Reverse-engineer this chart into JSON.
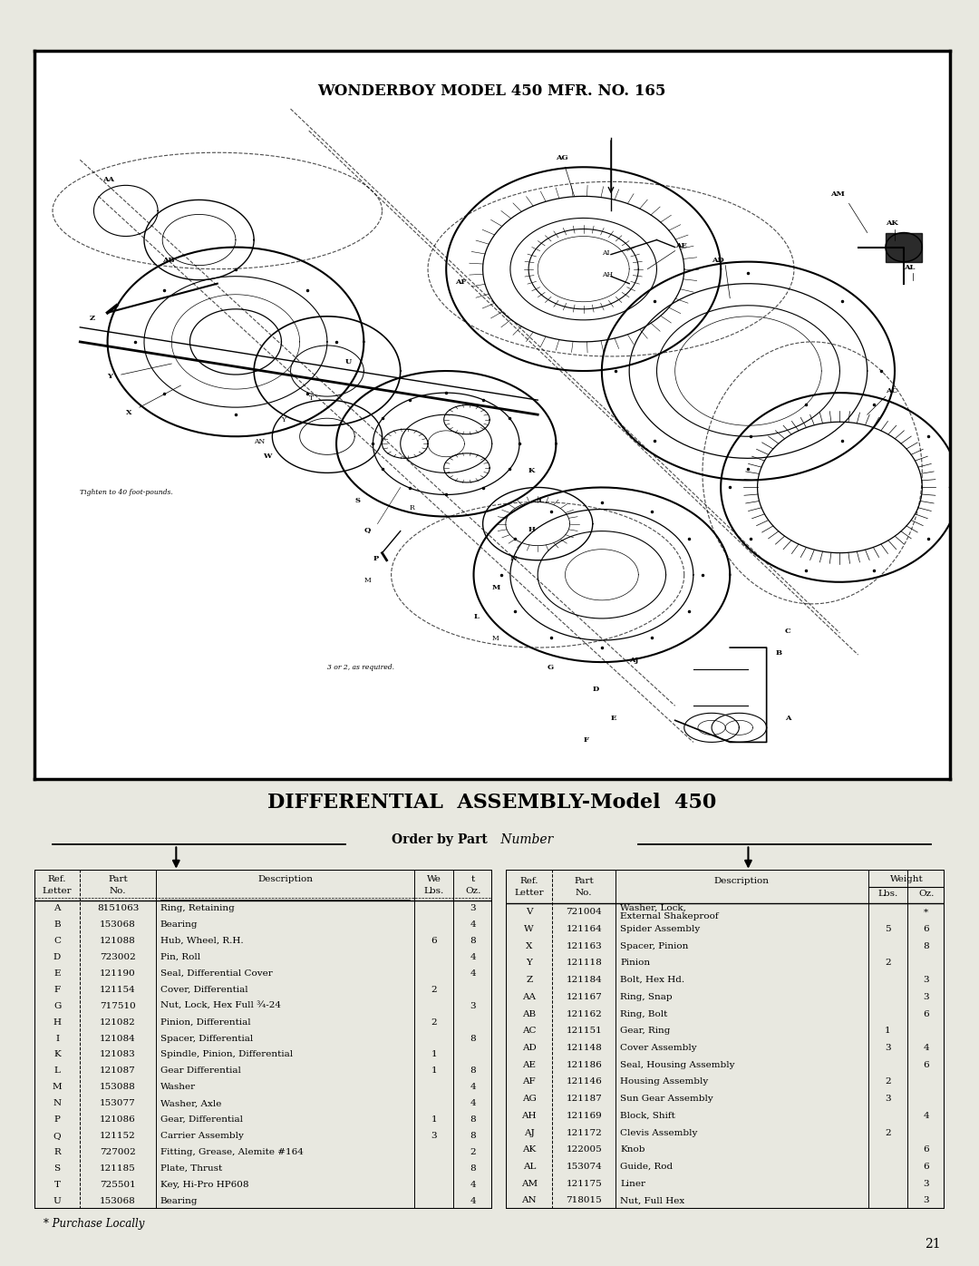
{
  "page_title": "WONDERBOY MODEL 450 MFR. NO. 165",
  "section_title": "DIFFERENTIAL  ASSEMBLY-Model  450",
  "order_by_text": "Order by Part",
  "order_by_italic": "Number",
  "page_number": "21",
  "footnote": "* Purchase Locally",
  "bg_color": "#e8e8e0",
  "diagram_bg": "#ffffff",
  "note1": "Tighten to 40 foot-pounds.",
  "note2": "3 or 2, as required.",
  "left_table_rows": [
    [
      "A",
      "8151063",
      "Ring, Retaining",
      "",
      "3"
    ],
    [
      "B",
      "153068",
      "Bearing",
      "",
      "4"
    ],
    [
      "C",
      "121088",
      "Hub, Wheel, R.H.",
      "6",
      "8"
    ],
    [
      "D",
      "723002",
      "Pin, Roll",
      "",
      "4"
    ],
    [
      "E",
      "121190",
      "Seal, Differential Cover",
      "",
      "4"
    ],
    [
      "F",
      "121154",
      "Cover, Differential",
      "2",
      ""
    ],
    [
      "G",
      "717510",
      "Nut, Lock, Hex Full ¾-24",
      "",
      "3"
    ],
    [
      "H",
      "121082",
      "Pinion, Differential",
      "2",
      ""
    ],
    [
      "I",
      "121084",
      "Spacer, Differential",
      "",
      "8"
    ],
    [
      "K",
      "121083",
      "Spindle, Pinion, Differential",
      "1",
      ""
    ],
    [
      "L",
      "121087",
      "Gear Differential",
      "1",
      "8"
    ],
    [
      "M",
      "153088",
      "Washer",
      "",
      "4"
    ],
    [
      "N",
      "153077",
      "Washer, Axle",
      "",
      "4"
    ],
    [
      "P",
      "121086",
      "Gear, Differential",
      "1",
      "8"
    ],
    [
      "Q",
      "121152",
      "Carrier Assembly",
      "3",
      "8"
    ],
    [
      "R",
      "727002",
      "Fitting, Grease, Alemite #164",
      "",
      "2"
    ],
    [
      "S",
      "121185",
      "Plate, Thrust",
      "",
      "8"
    ],
    [
      "T",
      "725501",
      "Key, Hi-Pro HP608",
      "",
      "4"
    ],
    [
      "U",
      "153068",
      "Bearing",
      "",
      "4"
    ]
  ],
  "right_table_rows": [
    [
      "V",
      "721004",
      "Washer, Lock,\nExternal Shakeproof",
      "",
      "*"
    ],
    [
      "W",
      "121164",
      "Spider Assembly",
      "5",
      "6"
    ],
    [
      "X",
      "121163",
      "Spacer, Pinion",
      "",
      "8"
    ],
    [
      "Y",
      "121118",
      "Pinion",
      "2",
      ""
    ],
    [
      "Z",
      "121184",
      "Bolt, Hex Hd.",
      "",
      "3"
    ],
    [
      "AA",
      "121167",
      "Ring, Snap",
      "",
      "3"
    ],
    [
      "AB",
      "121162",
      "Ring, Bolt",
      "",
      "6"
    ],
    [
      "AC",
      "121151",
      "Gear, Ring",
      "1",
      ""
    ],
    [
      "AD",
      "121148",
      "Cover Assembly",
      "3",
      "4"
    ],
    [
      "AE",
      "121186",
      "Seal, Housing Assembly",
      "",
      "6"
    ],
    [
      "AF",
      "121146",
      "Housing Assembly",
      "2",
      ""
    ],
    [
      "AG",
      "121187",
      "Sun Gear Assembly",
      "3",
      ""
    ],
    [
      "AH",
      "121169",
      "Block, Shift",
      "",
      "4"
    ],
    [
      "AJ",
      "121172",
      "Clevis Assembly",
      "2",
      ""
    ],
    [
      "AK",
      "122005",
      "Knob",
      "",
      "6"
    ],
    [
      "AL",
      "153074",
      "Guide, Rod",
      "",
      "6"
    ],
    [
      "AM",
      "121175",
      "Liner",
      "",
      "3"
    ],
    [
      "AN",
      "718015",
      "Nut, Full Hex",
      "",
      "3"
    ]
  ]
}
